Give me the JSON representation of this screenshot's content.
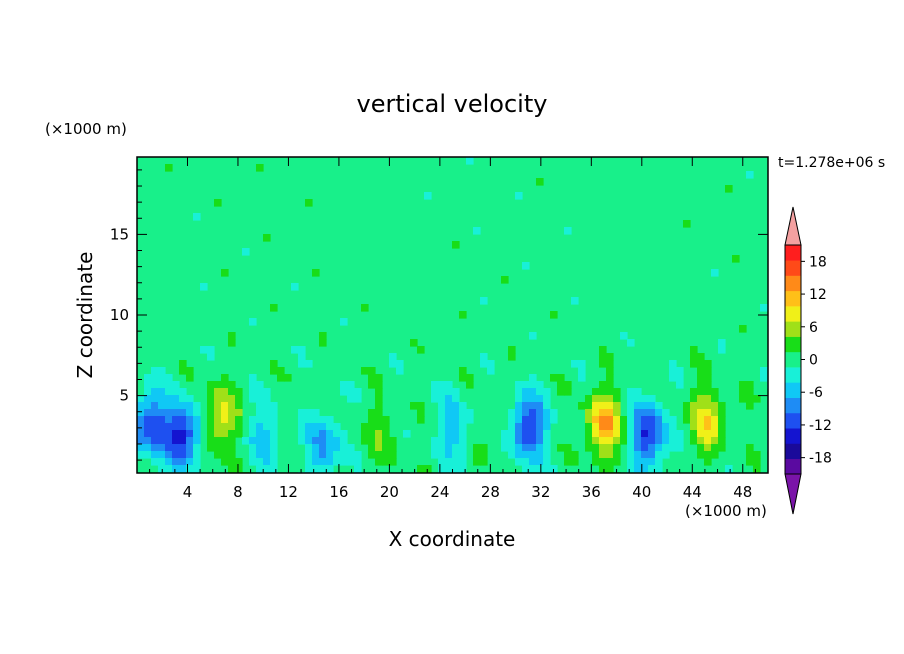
{
  "chart_data": {
    "type": "heatmap",
    "title": "vertical velocity",
    "xlabel": "X coordinate",
    "ylabel": "Z coordinate",
    "x_unit": "(×1000 m)",
    "y_unit": "(×1000 m)",
    "time_label": "t=1.278e+06 s",
    "xlim": [
      0,
      50
    ],
    "ylim": [
      0.2,
      19.8
    ],
    "x_ticks": [
      4,
      8,
      12,
      16,
      20,
      24,
      28,
      32,
      36,
      40,
      44,
      48
    ],
    "y_ticks": [
      5,
      10,
      15
    ],
    "colorbar": {
      "levels": [
        -21,
        -18,
        -15,
        -12,
        -9,
        -6,
        -3,
        0,
        3,
        6,
        9,
        12,
        15,
        18,
        21
      ],
      "tick_labels": [
        "18",
        "12",
        "6",
        "0",
        "-6",
        "-12",
        "-18"
      ],
      "tick_values": [
        18,
        12,
        6,
        0,
        -6,
        -12,
        -18
      ],
      "colors": [
        "#5a0aa0",
        "#1a0a9a",
        "#1414d0",
        "#1e50f0",
        "#1e8cf5",
        "#10c8f5",
        "#18f0d8",
        "#18f08a",
        "#18dd18",
        "#a0e018",
        "#f0f018",
        "#ffc018",
        "#ff8a18",
        "#ff4a18",
        "#ff1e1e"
      ],
      "over_color": "#f4a0a0",
      "under_color": "#7a14a8"
    },
    "background_value": 1.5,
    "features": [
      {
        "x": 1.0,
        "z": 3.2,
        "value": -12
      },
      {
        "x": 3.6,
        "z": 2.6,
        "value": -14
      },
      {
        "x": 6.6,
        "z": 3.6,
        "value": 11
      },
      {
        "x": 10.0,
        "z": 2.5,
        "value": -4
      },
      {
        "x": 14.8,
        "z": 1.8,
        "value": -7
      },
      {
        "x": 19.2,
        "z": 2.6,
        "value": 5
      },
      {
        "x": 25.0,
        "z": 3.0,
        "value": -5
      },
      {
        "x": 28.2,
        "z": 3.2,
        "value": 4
      },
      {
        "x": 31.0,
        "z": 3.0,
        "value": -13
      },
      {
        "x": 37.0,
        "z": 3.2,
        "value": 15
      },
      {
        "x": 40.5,
        "z": 2.6,
        "value": -13
      },
      {
        "x": 45.2,
        "z": 3.4,
        "value": 11
      }
    ]
  }
}
